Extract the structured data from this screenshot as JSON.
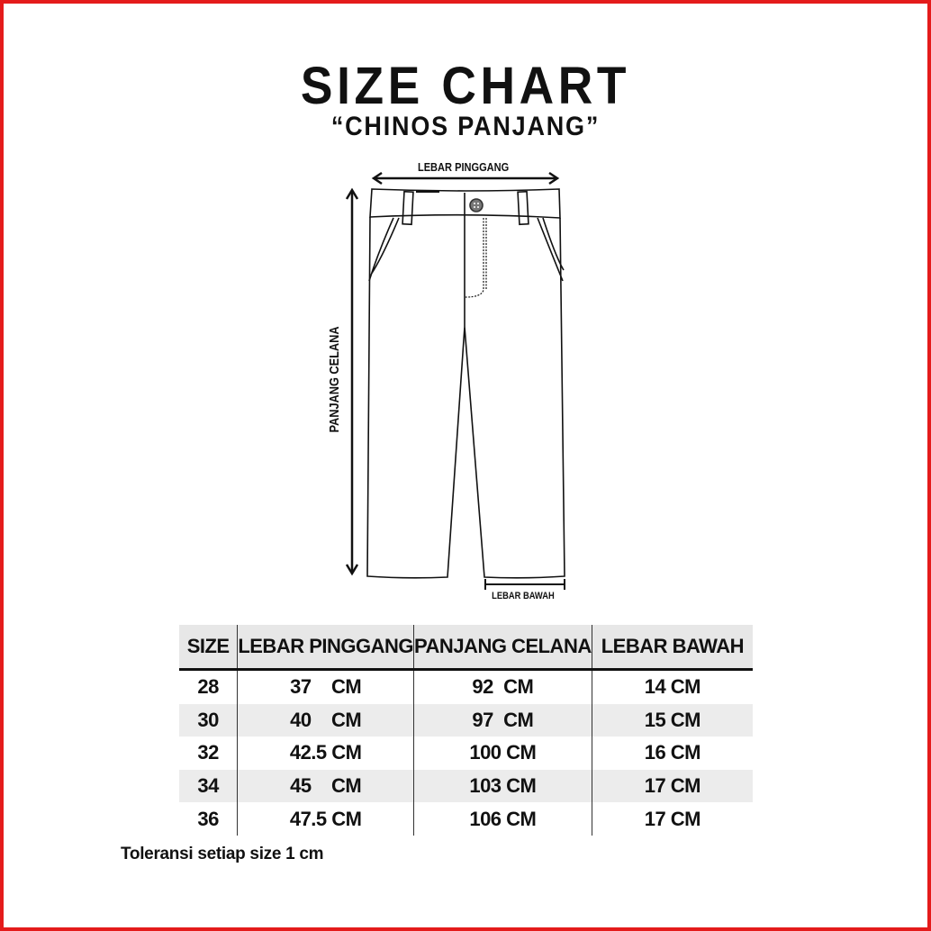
{
  "title": "SIZE CHART",
  "subtitle": "“CHINOS PANJANG”",
  "diagram": {
    "waist_label": "LEBAR PINGGANG",
    "length_label": "PANJANG CELANA",
    "hem_label": "LEBAR BAWAH"
  },
  "table": {
    "headers": [
      "SIZE",
      "LEBAR PINGGANG",
      "PANJANG CELANA",
      "LEBAR BAWAH"
    ],
    "rows": [
      [
        "28",
        "37    CM",
        "92  CM",
        "14 CM"
      ],
      [
        "30",
        "40    CM",
        "97  CM",
        "15 CM"
      ],
      [
        "32",
        "42.5 CM",
        "100 CM",
        "16 CM"
      ],
      [
        "34",
        "45    CM",
        "103 CM",
        "17 CM"
      ],
      [
        "36",
        "47.5 CM",
        "106 CM",
        "17 CM"
      ]
    ]
  },
  "note": "Toleransi setiap size 1 cm",
  "colors": {
    "border": "#e41b1b",
    "header_bg": "#e7e7e7",
    "stripe_bg": "#ececec"
  }
}
